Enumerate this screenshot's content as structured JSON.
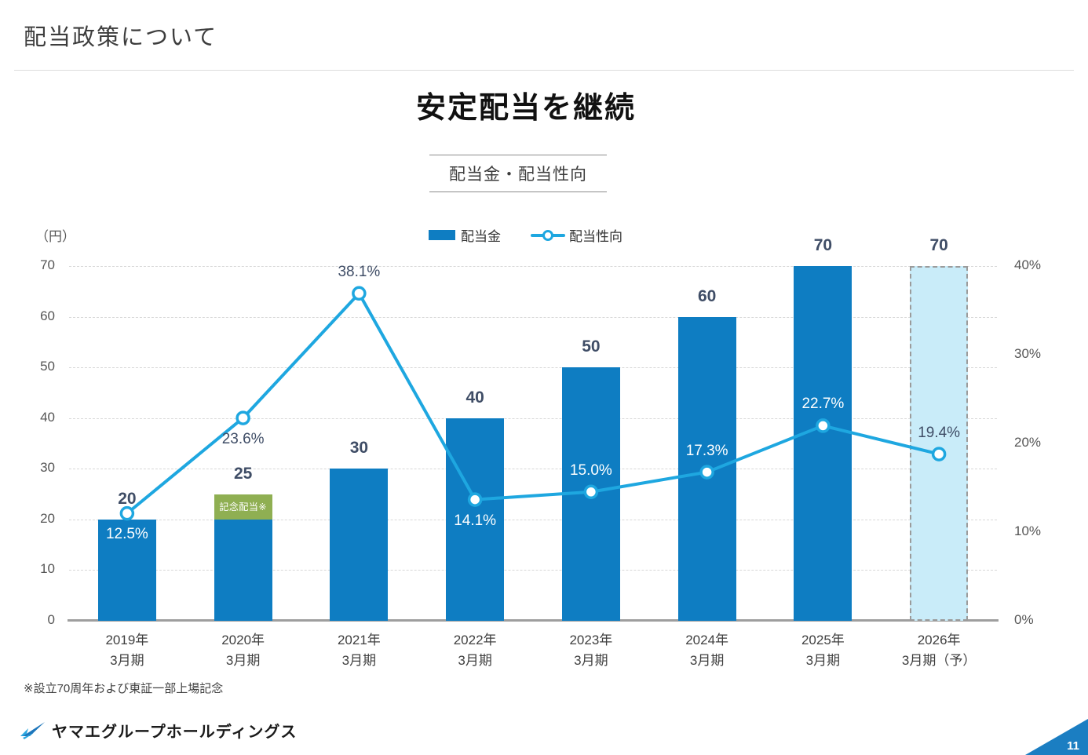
{
  "page": {
    "title": "配当政策について",
    "heading": "安定配当を継続",
    "subtitle": "配当金・配当性向",
    "footnote": "※設立70周年および東証一部上場記念",
    "footer_company": "ヤマエグループホールディングス",
    "page_number": "11"
  },
  "legend": {
    "bar_label": "配当金",
    "line_label": "配当性向"
  },
  "chart_data": {
    "type": "bar+line",
    "title": "配当金・配当性向",
    "unit_label": "（円）",
    "categories": [
      {
        "line1": "2019年",
        "line2": "3月期"
      },
      {
        "line1": "2020年",
        "line2": "3月期"
      },
      {
        "line1": "2021年",
        "line2": "3月期"
      },
      {
        "line1": "2022年",
        "line2": "3月期"
      },
      {
        "line1": "2023年",
        "line2": "3月期"
      },
      {
        "line1": "2024年",
        "line2": "3月期"
      },
      {
        "line1": "2025年",
        "line2": "3月期"
      },
      {
        "line1": "2026年",
        "line2": "3月期（予）"
      }
    ],
    "bars": {
      "name": "配当金",
      "values": [
        20,
        25,
        30,
        40,
        50,
        60,
        70,
        70
      ],
      "labels": [
        "20",
        "25",
        "30",
        "40",
        "50",
        "60",
        "70",
        "70"
      ]
    },
    "special_segment": {
      "index": 1,
      "from": 20,
      "to": 25,
      "label": "記念配当※"
    },
    "forecast_index": 7,
    "line": {
      "name": "配当性向",
      "values": [
        12.5,
        23.6,
        38.1,
        14.1,
        15.0,
        17.3,
        22.7,
        19.4
      ],
      "labels": [
        "12.5%",
        "23.6%",
        "38.1%",
        "14.1%",
        "15.0%",
        "17.3%",
        "22.7%",
        "19.4%"
      ],
      "label_position": [
        "below",
        "below",
        "above",
        "below",
        "above",
        "above",
        "above",
        "above"
      ],
      "label_tone": [
        "white",
        "dark",
        "dark",
        "white",
        "white",
        "white",
        "white",
        "dark"
      ]
    },
    "left_axis": {
      "min": 0,
      "max": 70,
      "step": 10,
      "labels": [
        "0",
        "10",
        "20",
        "30",
        "40",
        "50",
        "60",
        "70"
      ]
    },
    "right_axis": {
      "min": 0,
      "max": 40,
      "step": 10,
      "labels": [
        "0%",
        "10%",
        "20%",
        "30%",
        "40%"
      ]
    },
    "grid": true,
    "legend_position": "top-center",
    "colors": {
      "bar": "#0e7dc2",
      "forecast_fill": "#c9ecf9",
      "forecast_border": "#9b9b9b",
      "line": "#1ea7e0",
      "special": "#8faf52",
      "value_label": "#3f4d66",
      "pct_label_dark": "#3f4d66",
      "pct_label_white": "#ffffff",
      "corner": "#1b7ec2",
      "logo_dark": "#1d76bb",
      "logo_light": "#2ba7e0"
    }
  }
}
